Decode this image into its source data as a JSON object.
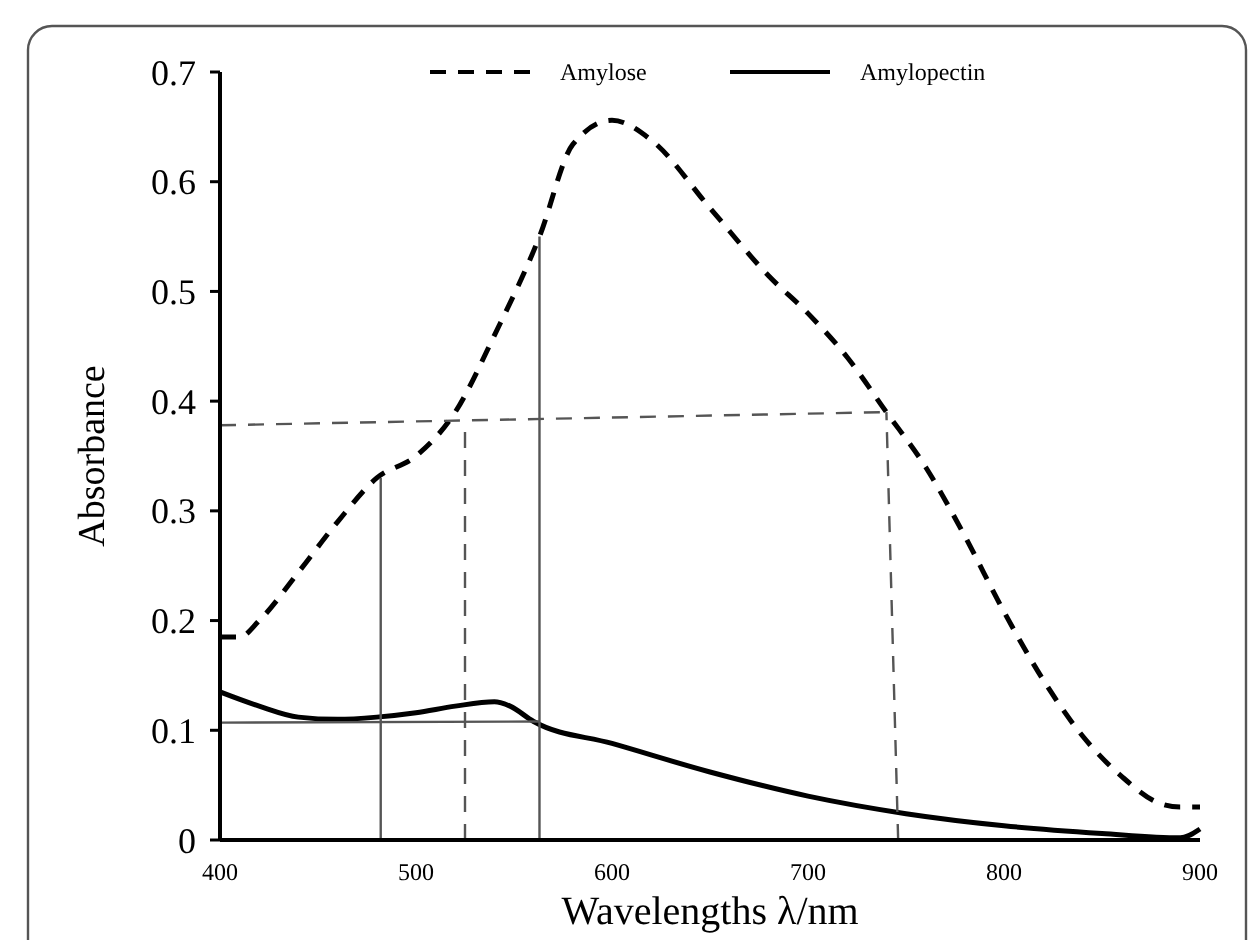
{
  "chart_data": {
    "type": "line",
    "xlabel": "Wavelengths λ/nm",
    "ylabel": "Absorbance",
    "xlim": [
      400,
      900
    ],
    "ylim": [
      0,
      0.7
    ],
    "xticks": [
      400,
      500,
      600,
      700,
      800,
      900
    ],
    "yticks": [
      {
        "value": 0,
        "label": "0"
      },
      0.1,
      0.2,
      0.3,
      0.4,
      0.5,
      0.6,
      0.7
    ],
    "legend": "top",
    "grid": false,
    "series": [
      {
        "name": "Amylose",
        "color": "#000000",
        "line_style": "dashed",
        "x": [
          400,
          410,
          420,
          440,
          460,
          480,
          500,
          520,
          540,
          563,
          580,
          600,
          620,
          650,
          680,
          700,
          720,
          740,
          760,
          780,
          800,
          820,
          840,
          860,
          880,
          890,
          900
        ],
        "values": [
          0.185,
          0.185,
          0.2,
          0.244,
          0.29,
          0.33,
          0.35,
          0.39,
          0.46,
          0.55,
          0.634,
          0.656,
          0.638,
          0.576,
          0.514,
          0.48,
          0.44,
          0.39,
          0.34,
          0.277,
          0.208,
          0.146,
          0.095,
          0.058,
          0.033,
          0.03,
          0.03
        ]
      },
      {
        "name": "Amylopectin",
        "color": "#000000",
        "line_style": "solid",
        "x": [
          400,
          420,
          440,
          460,
          480,
          500,
          520,
          540,
          548,
          560,
          600,
          650,
          700,
          750,
          800,
          850,
          890,
          900
        ],
        "values": [
          0.135,
          0.122,
          0.112,
          0.11,
          0.112,
          0.116,
          0.122,
          0.126,
          0.122,
          0.108,
          0.088,
          0.062,
          0.04,
          0.024,
          0.013,
          0.006,
          0.002,
          0.01
        ]
      },
      {
        "color": "#555555",
        "line_style": "solid",
        "x": [
          482,
          482
        ],
        "values": [
          0,
          0.33
        ]
      },
      {
        "color": "#555555",
        "line_style": "dashed",
        "x": [
          525,
          525
        ],
        "values": [
          0,
          0.38
        ]
      },
      {
        "color": "#555555",
        "line_style": "solid",
        "x": [
          563,
          563
        ],
        "values": [
          0,
          0.55
        ]
      },
      {
        "color": "#555555",
        "line_style": "dashed",
        "x": [
          746,
          740
        ],
        "values": [
          0,
          0.39
        ]
      },
      {
        "color": "#555555",
        "line_style": "dashed",
        "x": [
          400,
          740
        ],
        "values": [
          0.378,
          0.39
        ]
      },
      {
        "color": "#555555",
        "line_style": "solid",
        "x": [
          400,
          563
        ],
        "values": [
          0.107,
          0.108
        ]
      }
    ]
  }
}
